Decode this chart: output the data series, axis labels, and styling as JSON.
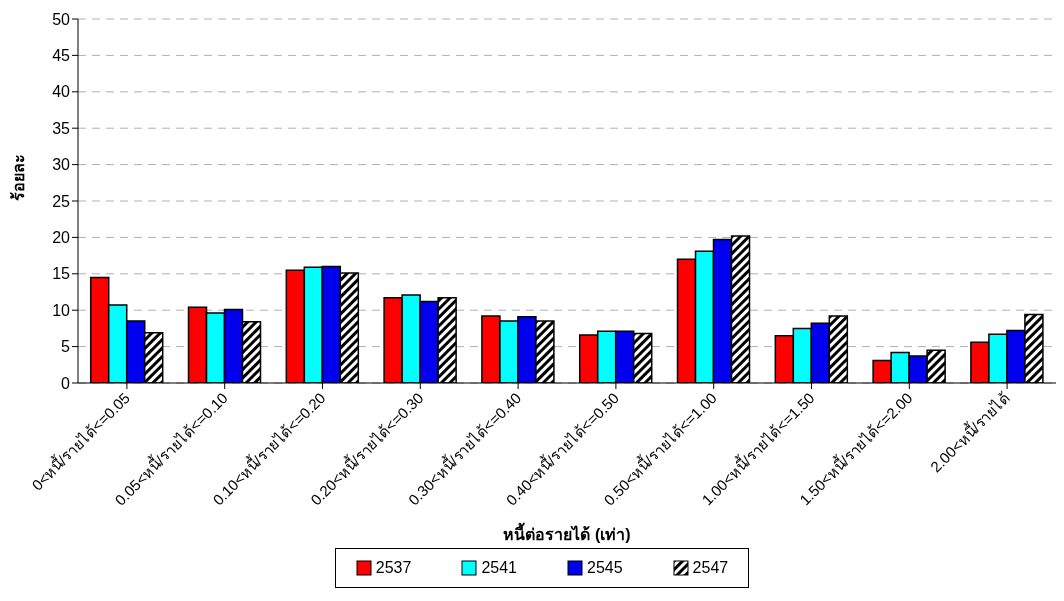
{
  "chart_data": {
    "type": "bar",
    "xlabel": "หนี้ต่อรายได้ (เท่า)",
    "ylabel": "ร้อยละ",
    "categories": [
      "0<หนี้/รายได้<=0.05",
      "0.05<หนี้/รายได้<=0.10",
      "0.10<หนี้/รายได้<=0.20",
      "0.20<หนี้/รายได้<=0.30",
      "0.30<หนี้/รายได้<=0.40",
      "0.40<หนี้/รายได้<=0.50",
      "0.50<หนี้/รายได้<=1.00",
      "1.00<หนี้/รายได้<=1.50",
      "1.50<หนี้/รายได้<=2.00",
      "2.00<หนี้/รายได้"
    ],
    "series": [
      {
        "name": "2537",
        "color": "#ff0000",
        "values": [
          14.5,
          10.4,
          15.5,
          11.7,
          9.2,
          6.6,
          17.0,
          6.5,
          3.1,
          5.6
        ]
      },
      {
        "name": "2541",
        "color": "#00ffff",
        "values": [
          10.7,
          9.6,
          15.9,
          12.1,
          8.5,
          7.1,
          18.1,
          7.5,
          4.2,
          6.7
        ]
      },
      {
        "name": "2545",
        "color": "#0000ee",
        "values": [
          8.5,
          10.1,
          16.0,
          11.2,
          9.1,
          7.1,
          19.7,
          8.2,
          3.7,
          7.2
        ]
      },
      {
        "name": "2547",
        "color": "#000000",
        "values": [
          6.9,
          8.4,
          15.1,
          11.7,
          8.5,
          6.8,
          20.2,
          9.2,
          4.5,
          9.4
        ]
      }
    ],
    "ylim": [
      0,
      50
    ],
    "yticks": [
      0,
      5,
      10,
      15,
      20,
      25,
      30,
      35,
      40,
      45,
      50
    ],
    "grid": "y",
    "legend": "bottom"
  }
}
